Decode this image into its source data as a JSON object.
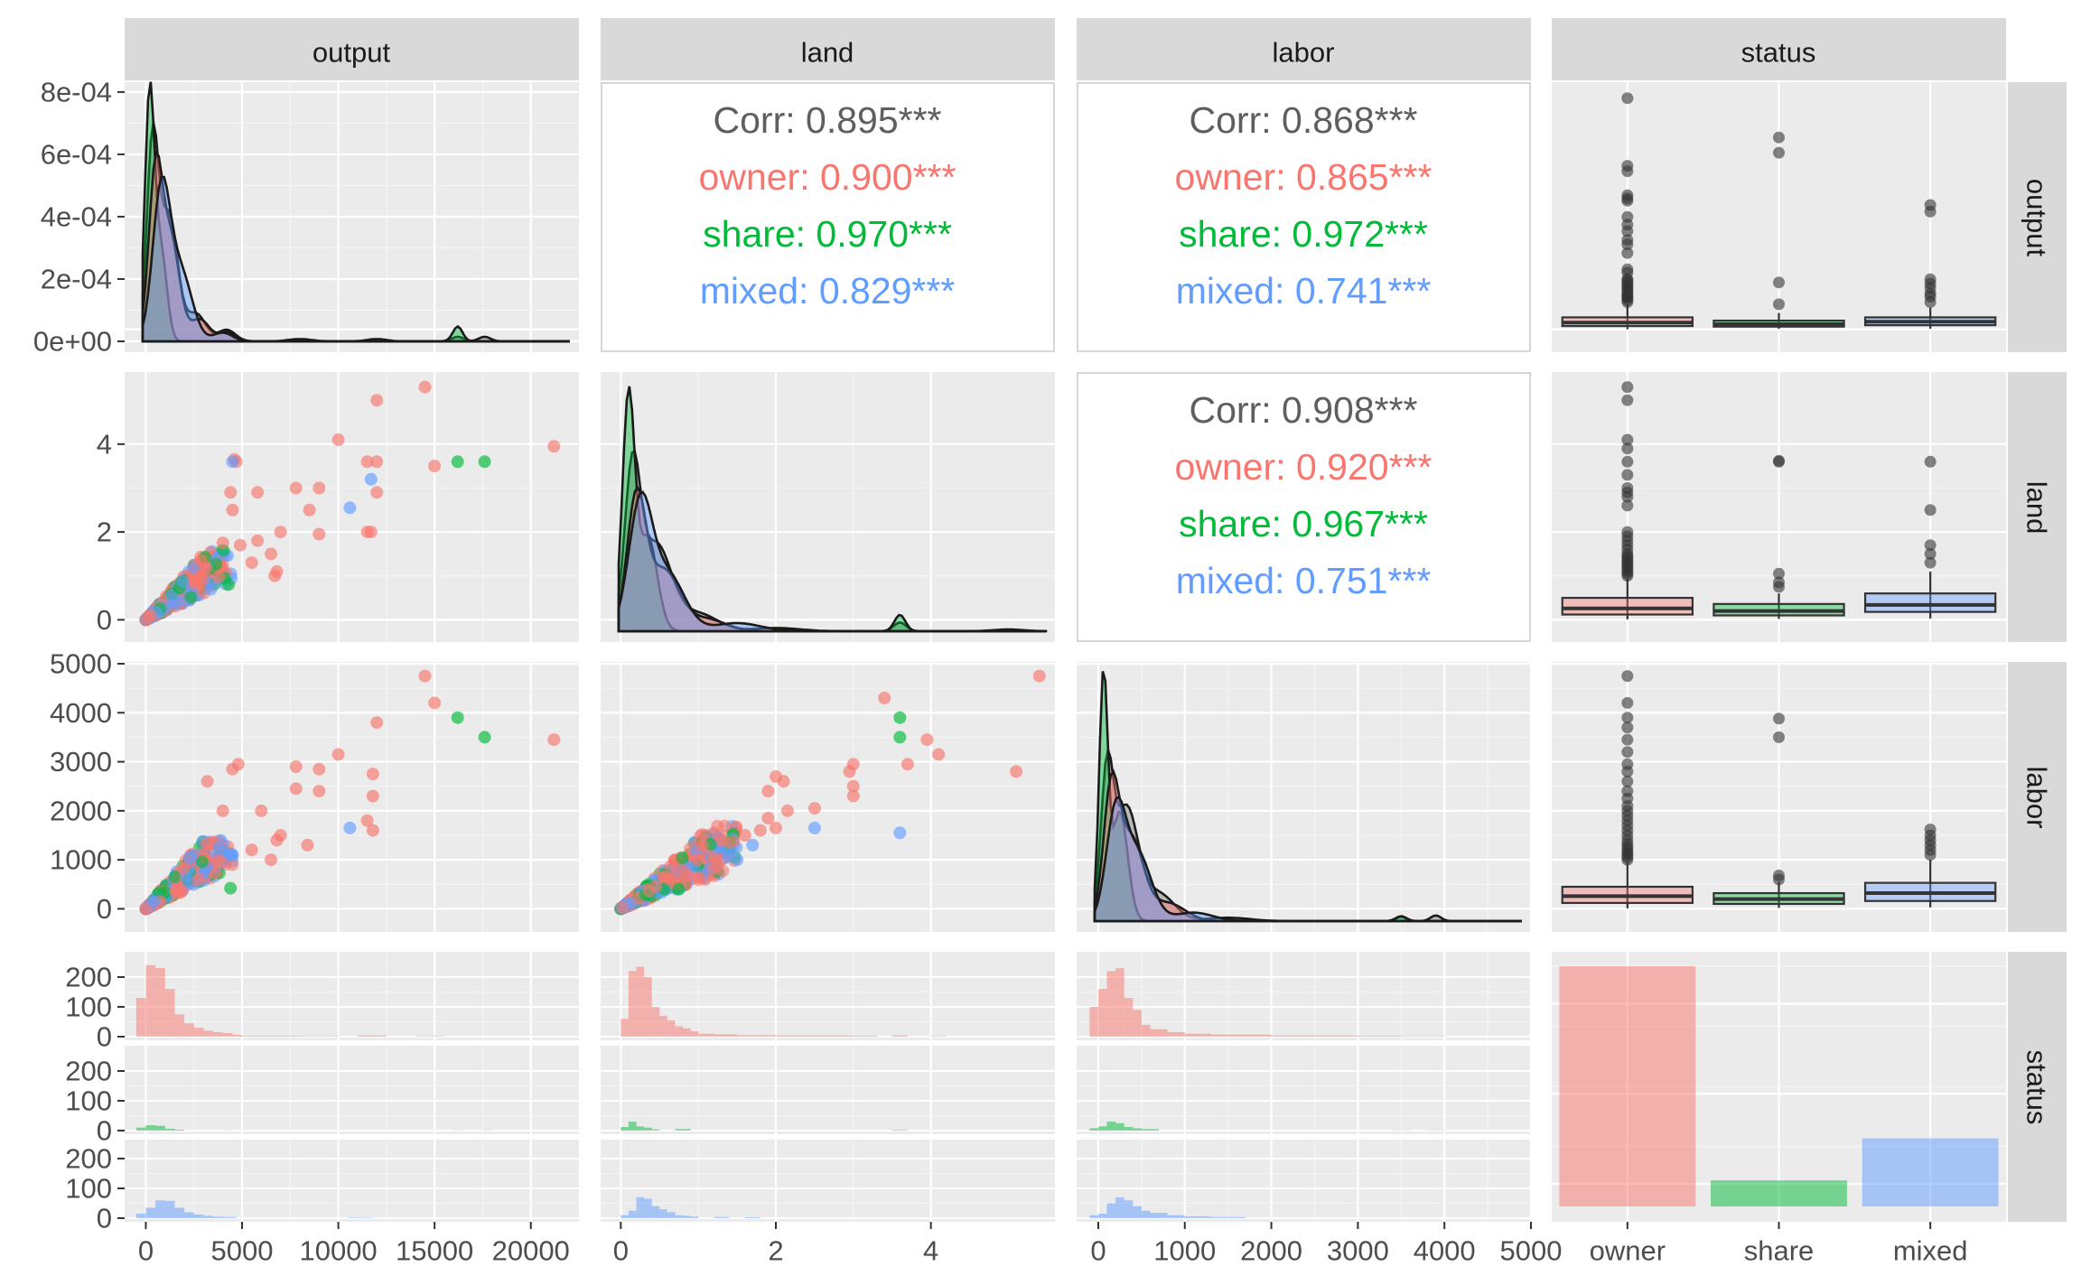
{
  "chart_data": {
    "type": "scatter-matrix",
    "variables": [
      "output",
      "land",
      "labor",
      "status"
    ],
    "groups": [
      {
        "name": "owner",
        "color": "#F8766D"
      },
      {
        "name": "share",
        "color": "#00BA38"
      },
      {
        "name": "mixed",
        "color": "#619CFF"
      }
    ],
    "column_strips": [
      "output",
      "land",
      "labor",
      "status"
    ],
    "row_strips": [
      "output",
      "land",
      "labor",
      "status"
    ],
    "axes": {
      "output": {
        "range": [
          -1100,
          22500
        ],
        "ticks": [
          0,
          5000,
          10000,
          15000,
          20000
        ],
        "tick_labels": [
          "0",
          "5000",
          "10000",
          "15000",
          "20000"
        ]
      },
      "land": {
        "range": [
          -0.26,
          5.6
        ],
        "ticks": [
          0,
          2,
          4
        ],
        "tick_labels": [
          "0",
          "2",
          "4"
        ]
      },
      "labor": {
        "range": [
          -250,
          5000
        ],
        "ticks": [
          0,
          1000,
          2000,
          3000,
          4000,
          5000
        ],
        "tick_labels": [
          "0",
          "1000",
          "2000",
          "3000",
          "4000",
          "5000"
        ]
      },
      "output_density": {
        "range": [
          0,
          0.00082
        ],
        "ticks": [
          0,
          0.0002,
          0.0004,
          0.0006,
          0.0008
        ],
        "tick_labels": [
          "0e+00",
          "2e-04",
          "4e-04",
          "6e-04",
          "8e-04"
        ]
      },
      "count": {
        "ticks": [
          0,
          100,
          200
        ],
        "tick_labels": [
          "0",
          "100",
          "200"
        ]
      },
      "status": {
        "categories": [
          "owner",
          "share",
          "mixed"
        ]
      }
    },
    "correlations": [
      {
        "pair": [
          "output",
          "land"
        ],
        "overall": "Corr: 0.895***",
        "owner": "owner: 0.900***",
        "share": "share: 0.970***",
        "mixed": "mixed: 0.829***"
      },
      {
        "pair": [
          "output",
          "labor"
        ],
        "overall": "Corr: 0.868***",
        "owner": "owner: 0.865***",
        "share": "share: 0.972***",
        "mixed": "mixed: 0.741***"
      },
      {
        "pair": [
          "land",
          "labor"
        ],
        "overall": "Corr: 0.908***",
        "owner": "owner: 0.920***",
        "share": "share: 0.967***",
        "mixed": "mixed: 0.751***"
      }
    ],
    "status_counts": {
      "owner": 240,
      "share": 26,
      "mixed": 68
    },
    "boxplots": {
      "output": {
        "owner": {
          "q1": 300,
          "median": 620,
          "q3": 1100,
          "whisker_low": 10,
          "whisker_high": 2300,
          "outliers": [
            2500,
            2700,
            2900,
            3000,
            3100,
            3300,
            3500,
            3700,
            3900,
            4100,
            4300,
            4500,
            4600,
            5200,
            5500,
            7000,
            7800,
            8200,
            9000,
            9600,
            10300,
            11800,
            12000,
            12300,
            14500,
            15000,
            21200
          ]
        },
        "share": {
          "q1": 250,
          "median": 470,
          "q3": 800,
          "whisker_low": 50,
          "whisker_high": 1500,
          "outliers": [
            2300,
            4300,
            16200,
            17600
          ]
        },
        "mixed": {
          "q1": 380,
          "median": 700,
          "q3": 1100,
          "whisker_low": 60,
          "whisker_high": 2000,
          "outliers": [
            2500,
            3000,
            3300,
            3800,
            4200,
            4600,
            10800,
            11400
          ]
        }
      },
      "land": {
        "owner": {
          "q1": 0.12,
          "median": 0.26,
          "q3": 0.5,
          "whisker_low": 0.01,
          "whisker_high": 0.95,
          "outliers": [
            1.0,
            1.05,
            1.1,
            1.15,
            1.2,
            1.25,
            1.3,
            1.35,
            1.4,
            1.45,
            1.5,
            1.6,
            1.7,
            1.8,
            1.9,
            2.0,
            2.6,
            2.8,
            2.9,
            3.0,
            3.3,
            3.6,
            3.9,
            4.1,
            5.0,
            5.3
          ]
        },
        "share": {
          "q1": 0.1,
          "median": 0.2,
          "q3": 0.36,
          "whisker_low": 0.02,
          "whisker_high": 0.6,
          "outliers": [
            0.75,
            0.85,
            1.05,
            3.6,
            3.62
          ]
        },
        "mixed": {
          "q1": 0.18,
          "median": 0.34,
          "q3": 0.6,
          "whisker_low": 0.03,
          "whisker_high": 1.1,
          "outliers": [
            1.3,
            1.5,
            1.7,
            2.5,
            3.6
          ]
        }
      },
      "labor": {
        "owner": {
          "q1": 120,
          "median": 260,
          "q3": 450,
          "whisker_low": 10,
          "whisker_high": 950,
          "outliers": [
            1000,
            1050,
            1100,
            1150,
            1200,
            1260,
            1320,
            1400,
            1500,
            1600,
            1700,
            1800,
            1900,
            2000,
            2100,
            2250,
            2400,
            2600,
            2800,
            2950,
            3200,
            3450,
            3700,
            3900,
            4200,
            4750
          ]
        },
        "share": {
          "q1": 100,
          "median": 200,
          "q3": 320,
          "whisker_low": 20,
          "whisker_high": 550,
          "outliers": [
            600,
            680,
            3500,
            3880
          ]
        },
        "mixed": {
          "q1": 160,
          "median": 320,
          "q3": 530,
          "whisker_low": 30,
          "whisker_high": 1000,
          "outliers": [
            1100,
            1200,
            1300,
            1400,
            1500,
            1620
          ]
        }
      }
    },
    "scatter": {
      "output_land": [
        {
          "g": "owner",
          "x": 14500,
          "y": 5.3
        },
        {
          "g": "owner",
          "x": 12000,
          "y": 5.0
        },
        {
          "g": "owner",
          "x": 10000,
          "y": 4.1
        },
        {
          "g": "owner",
          "x": 21200,
          "y": 3.95
        },
        {
          "g": "owner",
          "x": 11500,
          "y": 3.6
        },
        {
          "g": "owner",
          "x": 12000,
          "y": 3.6
        },
        {
          "g": "owner",
          "x": 15000,
          "y": 3.5
        },
        {
          "g": "owner",
          "x": 4600,
          "y": 3.65
        },
        {
          "g": "owner",
          "x": 4700,
          "y": 3.6
        },
        {
          "g": "owner",
          "x": 7800,
          "y": 3.0
        },
        {
          "g": "owner",
          "x": 9000,
          "y": 3.0
        },
        {
          "g": "owner",
          "x": 4400,
          "y": 2.9
        },
        {
          "g": "owner",
          "x": 5800,
          "y": 2.9
        },
        {
          "g": "owner",
          "x": 12000,
          "y": 2.9
        },
        {
          "g": "owner",
          "x": 8500,
          "y": 2.5
        },
        {
          "g": "owner",
          "x": 4500,
          "y": 2.5
        },
        {
          "g": "owner",
          "x": 9000,
          "y": 1.95
        },
        {
          "g": "owner",
          "x": 11500,
          "y": 2.0
        },
        {
          "g": "owner",
          "x": 11700,
          "y": 2.0
        },
        {
          "g": "owner",
          "x": 7000,
          "y": 2.0
        },
        {
          "g": "owner",
          "x": 5800,
          "y": 1.8
        },
        {
          "g": "owner",
          "x": 4000,
          "y": 1.75
        },
        {
          "g": "owner",
          "x": 4900,
          "y": 1.7
        },
        {
          "g": "owner",
          "x": 6500,
          "y": 1.5
        },
        {
          "g": "owner",
          "x": 5500,
          "y": 1.3
        },
        {
          "g": "owner",
          "x": 6800,
          "y": 1.1
        },
        {
          "g": "owner",
          "x": 6700,
          "y": 1.0
        },
        {
          "g": "share",
          "x": 16200,
          "y": 3.6
        },
        {
          "g": "share",
          "x": 17600,
          "y": 3.6
        },
        {
          "g": "share",
          "x": 4300,
          "y": 0.8
        },
        {
          "g": "mixed",
          "x": 10600,
          "y": 2.55
        },
        {
          "g": "mixed",
          "x": 11700,
          "y": 3.2
        },
        {
          "g": "mixed",
          "x": 4500,
          "y": 3.6
        }
      ],
      "output_labor": [
        {
          "g": "owner",
          "x": 14500,
          "y": 4750
        },
        {
          "g": "owner",
          "x": 15000,
          "y": 4200
        },
        {
          "g": "owner",
          "x": 12000,
          "y": 3800
        },
        {
          "g": "owner",
          "x": 21200,
          "y": 3450
        },
        {
          "g": "owner",
          "x": 10000,
          "y": 3150
        },
        {
          "g": "owner",
          "x": 4800,
          "y": 2950
        },
        {
          "g": "owner",
          "x": 4500,
          "y": 2850
        },
        {
          "g": "owner",
          "x": 7800,
          "y": 2900
        },
        {
          "g": "owner",
          "x": 9000,
          "y": 2850
        },
        {
          "g": "owner",
          "x": 11800,
          "y": 2750
        },
        {
          "g": "owner",
          "x": 3200,
          "y": 2600
        },
        {
          "g": "owner",
          "x": 7800,
          "y": 2450
        },
        {
          "g": "owner",
          "x": 9000,
          "y": 2400
        },
        {
          "g": "owner",
          "x": 11800,
          "y": 2300
        },
        {
          "g": "owner",
          "x": 4000,
          "y": 2000
        },
        {
          "g": "owner",
          "x": 6000,
          "y": 2000
        },
        {
          "g": "owner",
          "x": 11500,
          "y": 1800
        },
        {
          "g": "owner",
          "x": 11800,
          "y": 1600
        },
        {
          "g": "owner",
          "x": 7000,
          "y": 1500
        },
        {
          "g": "owner",
          "x": 6800,
          "y": 1400
        },
        {
          "g": "owner",
          "x": 8400,
          "y": 1300
        },
        {
          "g": "owner",
          "x": 5500,
          "y": 1200
        },
        {
          "g": "owner",
          "x": 6500,
          "y": 1000
        },
        {
          "g": "share",
          "x": 16200,
          "y": 3900
        },
        {
          "g": "share",
          "x": 17600,
          "y": 3500
        },
        {
          "g": "share",
          "x": 4400,
          "y": 420
        },
        {
          "g": "mixed",
          "x": 10600,
          "y": 1650
        },
        {
          "g": "mixed",
          "x": 4500,
          "y": 1100
        },
        {
          "g": "mixed",
          "x": 3800,
          "y": 1250
        }
      ],
      "land_labor": [
        {
          "g": "owner",
          "x": 5.4,
          "y": 4750
        },
        {
          "g": "owner",
          "x": 3.4,
          "y": 4300
        },
        {
          "g": "owner",
          "x": 3.95,
          "y": 3450
        },
        {
          "g": "owner",
          "x": 4.1,
          "y": 3150
        },
        {
          "g": "owner",
          "x": 3.7,
          "y": 2950
        },
        {
          "g": "owner",
          "x": 3.0,
          "y": 2950
        },
        {
          "g": "owner",
          "x": 2.95,
          "y": 2800
        },
        {
          "g": "owner",
          "x": 5.1,
          "y": 2800
        },
        {
          "g": "owner",
          "x": 2.0,
          "y": 2700
        },
        {
          "g": "owner",
          "x": 2.1,
          "y": 2600
        },
        {
          "g": "owner",
          "x": 3.0,
          "y": 2500
        },
        {
          "g": "owner",
          "x": 1.9,
          "y": 2400
        },
        {
          "g": "owner",
          "x": 3.0,
          "y": 2300
        },
        {
          "g": "owner",
          "x": 2.5,
          "y": 2050
        },
        {
          "g": "owner",
          "x": 2.15,
          "y": 2000
        },
        {
          "g": "owner",
          "x": 1.9,
          "y": 1850
        },
        {
          "g": "owner",
          "x": 2.0,
          "y": 1650
        },
        {
          "g": "owner",
          "x": 1.8,
          "y": 1600
        },
        {
          "g": "owner",
          "x": 1.6,
          "y": 1500
        },
        {
          "g": "owner",
          "x": 1.3,
          "y": 1400
        },
        {
          "g": "owner",
          "x": 1.4,
          "y": 1350
        },
        {
          "g": "owner",
          "x": 1.05,
          "y": 1300
        },
        {
          "g": "owner",
          "x": 1.0,
          "y": 1000
        },
        {
          "g": "share",
          "x": 3.6,
          "y": 3900
        },
        {
          "g": "share",
          "x": 3.6,
          "y": 3500
        },
        {
          "g": "share",
          "x": 0.75,
          "y": 400
        },
        {
          "g": "mixed",
          "x": 2.5,
          "y": 1650
        },
        {
          "g": "mixed",
          "x": 3.6,
          "y": 1550
        },
        {
          "g": "mixed",
          "x": 1.7,
          "y": 1300
        },
        {
          "g": "mixed",
          "x": 1.5,
          "y": 1000
        }
      ]
    }
  }
}
